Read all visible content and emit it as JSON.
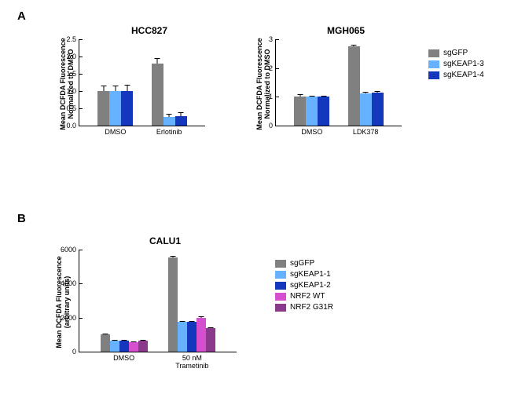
{
  "panelA": {
    "label": "A",
    "legend": [
      {
        "label": "sgGFP",
        "color": "#808080"
      },
      {
        "label": "sgKEAP1-3",
        "color": "#66b2ff"
      },
      {
        "label": "sgKEAP1-4",
        "color": "#1338be"
      }
    ],
    "yaxis_label": "Mean DCFDA Fluorescence\nNormalized to DMSO",
    "charts": [
      {
        "title": "HCC827",
        "ymax": 2.5,
        "ystep": 0.5,
        "groups": [
          {
            "label": "DMSO",
            "bars": [
              {
                "val": 1.0,
                "err": 0.15,
                "color": "#808080"
              },
              {
                "val": 1.0,
                "err": 0.17,
                "color": "#66b2ff"
              },
              {
                "val": 1.0,
                "err": 0.18,
                "color": "#1338be"
              }
            ]
          },
          {
            "label": "Erlotinib",
            "bars": [
              {
                "val": 1.8,
                "err": 0.15,
                "color": "#808080"
              },
              {
                "val": 0.25,
                "err": 0.08,
                "color": "#66b2ff"
              },
              {
                "val": 0.28,
                "err": 0.1,
                "color": "#1338be"
              }
            ]
          }
        ]
      },
      {
        "title": "MGH065",
        "ymax": 3,
        "ystep": 1,
        "groups": [
          {
            "label": "DMSO",
            "bars": [
              {
                "val": 1.0,
                "err": 0.1,
                "color": "#808080"
              },
              {
                "val": 1.0,
                "err": 0.05,
                "color": "#66b2ff"
              },
              {
                "val": 1.0,
                "err": 0.05,
                "color": "#1338be"
              }
            ]
          },
          {
            "label": "LDK378",
            "bars": [
              {
                "val": 2.75,
                "err": 0.05,
                "color": "#808080"
              },
              {
                "val": 1.12,
                "err": 0.04,
                "color": "#66b2ff"
              },
              {
                "val": 1.15,
                "err": 0.04,
                "color": "#1338be"
              }
            ]
          }
        ]
      }
    ]
  },
  "panelB": {
    "label": "B",
    "legend": [
      {
        "label": "sgGFP",
        "color": "#808080"
      },
      {
        "label": "sgKEAP1-1",
        "color": "#66b2ff"
      },
      {
        "label": "sgKEAP1-2",
        "color": "#1338be"
      },
      {
        "label": "NRF2 WT",
        "color": "#d64fce"
      },
      {
        "label": "NRF2 G31R",
        "color": "#8b3a8b"
      }
    ],
    "yaxis_label": "Mean DCFDA Fluorescence\n(arbitrary units)",
    "chart": {
      "title": "CALU1",
      "ymax": 6000,
      "ystep": 2000,
      "groups": [
        {
          "label": "DMSO",
          "bars": [
            {
              "val": 1000,
              "err": 60,
              "color": "#808080"
            },
            {
              "val": 650,
              "err": 40,
              "color": "#66b2ff"
            },
            {
              "val": 650,
              "err": 40,
              "color": "#1338be"
            },
            {
              "val": 550,
              "err": 40,
              "color": "#d64fce"
            },
            {
              "val": 650,
              "err": 40,
              "color": "#8b3a8b"
            }
          ]
        },
        {
          "label": "50 nM Trametinib",
          "bars": [
            {
              "val": 5550,
              "err": 60,
              "color": "#808080"
            },
            {
              "val": 1750,
              "err": 50,
              "color": "#66b2ff"
            },
            {
              "val": 1750,
              "err": 50,
              "color": "#1338be"
            },
            {
              "val": 2000,
              "err": 70,
              "color": "#d64fce"
            },
            {
              "val": 1400,
              "err": 50,
              "color": "#8b3a8b"
            }
          ]
        }
      ]
    }
  }
}
